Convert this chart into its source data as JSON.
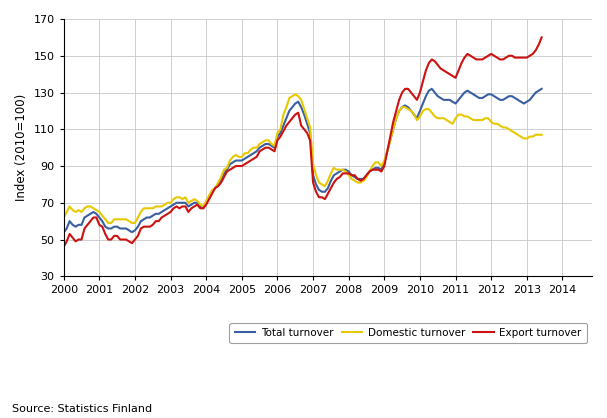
{
  "ylabel": "Index (2010=100)",
  "xlabel": "",
  "ylim": [
    30,
    170
  ],
  "yticks": [
    30,
    50,
    70,
    90,
    110,
    130,
    150,
    170
  ],
  "xlim": [
    2000.0,
    2014.83
  ],
  "xticks": [
    2000,
    2001,
    2002,
    2003,
    2004,
    2005,
    2006,
    2007,
    2008,
    2009,
    2010,
    2011,
    2012,
    2013,
    2014
  ],
  "source_text": "Source: Statistics Finland",
  "legend_labels": [
    "Total turnover",
    "Domestic turnover",
    "Export turnover"
  ],
  "colors": {
    "total": "#3a5fa0",
    "domestic": "#e8c800",
    "export": "#cc1111"
  },
  "background_color": "#ffffff",
  "grid_color": "#c8c8c8",
  "total_turnover": [
    54,
    56,
    60,
    58,
    57,
    58,
    58,
    62,
    63,
    64,
    65,
    64,
    62,
    60,
    57,
    56,
    56,
    57,
    57,
    56,
    56,
    56,
    55,
    54,
    55,
    57,
    60,
    61,
    62,
    62,
    63,
    64,
    64,
    65,
    66,
    67,
    68,
    69,
    70,
    70,
    70,
    70,
    68,
    69,
    70,
    70,
    68,
    67,
    70,
    73,
    76,
    78,
    80,
    83,
    86,
    88,
    91,
    92,
    93,
    93,
    93,
    94,
    95,
    96,
    97,
    98,
    100,
    101,
    102,
    102,
    101,
    100,
    106,
    108,
    112,
    116,
    120,
    122,
    124,
    125,
    122,
    118,
    113,
    108,
    85,
    80,
    77,
    76,
    76,
    78,
    82,
    85,
    86,
    87,
    88,
    88,
    87,
    85,
    84,
    83,
    83,
    83,
    85,
    87,
    88,
    89,
    89,
    88,
    92,
    98,
    104,
    110,
    116,
    120,
    122,
    123,
    122,
    120,
    118,
    116,
    120,
    124,
    128,
    131,
    132,
    130,
    128,
    127,
    126,
    126,
    126,
    125,
    124,
    126,
    128,
    130,
    131,
    130,
    129,
    128,
    127,
    127,
    128,
    129,
    129,
    128,
    127,
    126,
    126,
    127,
    128,
    128,
    127,
    126,
    125,
    124,
    125,
    126,
    128,
    130,
    131,
    132
  ],
  "domestic_turnover": [
    62,
    65,
    68,
    66,
    65,
    66,
    65,
    67,
    68,
    68,
    67,
    66,
    65,
    63,
    61,
    59,
    59,
    61,
    61,
    61,
    61,
    61,
    60,
    59,
    59,
    62,
    65,
    67,
    67,
    67,
    67,
    68,
    68,
    68,
    69,
    70,
    70,
    72,
    73,
    73,
    72,
    73,
    70,
    71,
    72,
    71,
    69,
    68,
    71,
    74,
    77,
    78,
    81,
    84,
    88,
    89,
    93,
    95,
    96,
    95,
    95,
    97,
    97,
    99,
    100,
    100,
    102,
    103,
    104,
    104,
    102,
    101,
    108,
    110,
    118,
    122,
    127,
    128,
    129,
    128,
    126,
    121,
    116,
    111,
    91,
    85,
    81,
    80,
    79,
    82,
    86,
    89,
    88,
    88,
    88,
    87,
    85,
    83,
    82,
    81,
    81,
    82,
    84,
    87,
    90,
    92,
    92,
    90,
    93,
    98,
    104,
    110,
    116,
    120,
    122,
    122,
    121,
    120,
    118,
    115,
    117,
    120,
    121,
    121,
    119,
    117,
    116,
    116,
    116,
    115,
    114,
    113,
    116,
    118,
    118,
    117,
    117,
    116,
    115,
    115,
    115,
    115,
    116,
    116,
    114,
    113,
    113,
    112,
    111,
    111,
    110,
    109,
    108,
    107,
    106,
    105,
    105,
    106,
    106,
    107,
    107,
    107
  ],
  "export_turnover": [
    46,
    49,
    53,
    51,
    49,
    50,
    50,
    56,
    58,
    60,
    62,
    62,
    58,
    57,
    53,
    50,
    50,
    52,
    52,
    50,
    50,
    50,
    49,
    48,
    50,
    52,
    56,
    57,
    57,
    57,
    58,
    60,
    60,
    62,
    63,
    64,
    65,
    67,
    68,
    67,
    68,
    68,
    65,
    67,
    68,
    69,
    67,
    67,
    69,
    72,
    75,
    78,
    79,
    81,
    84,
    87,
    88,
    89,
    90,
    90,
    90,
    91,
    92,
    93,
    94,
    95,
    98,
    99,
    100,
    100,
    99,
    98,
    104,
    106,
    109,
    112,
    114,
    116,
    118,
    119,
    112,
    110,
    108,
    104,
    81,
    76,
    73,
    73,
    72,
    75,
    78,
    81,
    83,
    84,
    86,
    86,
    86,
    85,
    85,
    83,
    82,
    83,
    85,
    87,
    88,
    88,
    88,
    87,
    90,
    98,
    106,
    114,
    120,
    126,
    130,
    132,
    132,
    130,
    128,
    126,
    130,
    136,
    142,
    146,
    148,
    147,
    145,
    143,
    142,
    141,
    140,
    139,
    138,
    142,
    146,
    149,
    151,
    150,
    149,
    148,
    148,
    148,
    149,
    150,
    151,
    150,
    149,
    148,
    148,
    149,
    150,
    150,
    149,
    149,
    149,
    149,
    149,
    150,
    151,
    153,
    156,
    160
  ]
}
